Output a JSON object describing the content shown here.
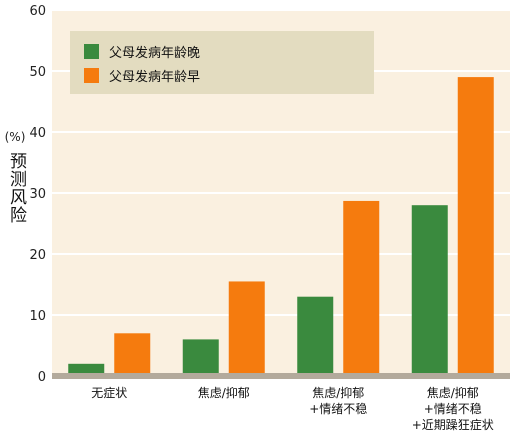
{
  "chart_data": {
    "type": "bar",
    "ylabel": "预测风险",
    "yunit": "(%)",
    "ylim": [
      0,
      60
    ],
    "yticks": [
      "0",
      "10",
      "20",
      "30",
      "40",
      "50",
      "60"
    ],
    "categories": [
      [
        "无症状"
      ],
      [
        "焦虑/抑郁"
      ],
      [
        "焦虑/抑郁",
        "+情绪不稳"
      ],
      [
        "焦虑/抑郁",
        "+情绪不稳",
        "+近期躁狂症状"
      ]
    ],
    "series": [
      {
        "name": "父母发病年龄晚",
        "color": "#3a8a3e",
        "values": [
          2,
          6,
          13,
          28
        ]
      },
      {
        "name": "父母发病年龄早",
        "color": "#f57b0e",
        "values": [
          7,
          15.5,
          28.7,
          49
        ]
      }
    ],
    "legend": "top-left",
    "grid": true,
    "background": "#faf0e0",
    "baseline_color": "#b3aa9c"
  }
}
